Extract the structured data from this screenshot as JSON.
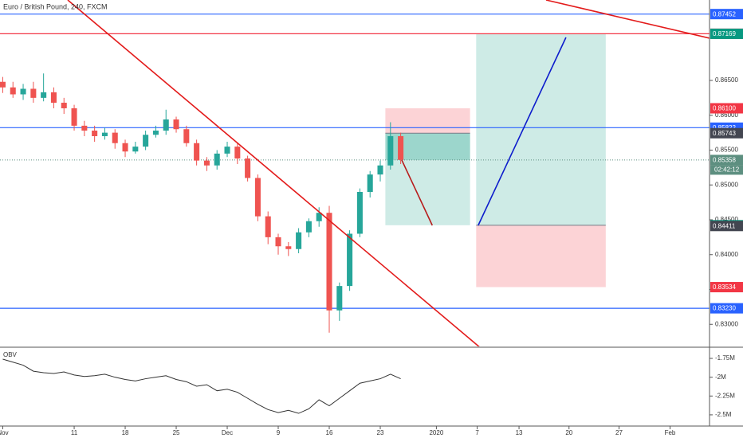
{
  "chart_data": [
    {
      "type": "candlestick",
      "title": "Euro / British Pound, 240, FXCM",
      "x": [
        -7,
        -6,
        -5,
        -4,
        -3,
        -2,
        -1,
        0,
        1,
        2,
        3,
        4,
        5,
        6,
        7,
        8,
        9,
        10,
        11,
        12,
        13,
        14,
        15,
        16,
        17,
        18,
        19,
        20,
        21,
        22,
        23,
        24,
        25,
        26,
        27,
        28,
        29,
        30,
        31,
        32
      ],
      "open": [
        0.8648,
        0.864,
        0.863,
        0.8638,
        0.8625,
        0.8633,
        0.8618,
        0.861,
        0.8585,
        0.8578,
        0.857,
        0.8575,
        0.856,
        0.8548,
        0.8555,
        0.8572,
        0.8578,
        0.8594,
        0.858,
        0.856,
        0.8535,
        0.8528,
        0.8545,
        0.8555,
        0.8538,
        0.851,
        0.8455,
        0.8425,
        0.8412,
        0.8408,
        0.8432,
        0.8448,
        0.846,
        0.832,
        0.8355,
        0.843,
        0.849,
        0.8515,
        0.8528,
        0.857
      ],
      "high": [
        0.8655,
        0.8648,
        0.8645,
        0.8648,
        0.866,
        0.864,
        0.8625,
        0.8615,
        0.8592,
        0.8585,
        0.8582,
        0.858,
        0.8565,
        0.8562,
        0.8578,
        0.8585,
        0.8608,
        0.8598,
        0.8585,
        0.8565,
        0.854,
        0.855,
        0.8562,
        0.856,
        0.8542,
        0.8515,
        0.8462,
        0.843,
        0.8418,
        0.8438,
        0.8452,
        0.8468,
        0.847,
        0.836,
        0.8435,
        0.8495,
        0.852,
        0.8535,
        0.859,
        0.8575
      ],
      "low": [
        0.8632,
        0.8625,
        0.8622,
        0.8618,
        0.862,
        0.861,
        0.8602,
        0.8578,
        0.857,
        0.8562,
        0.8565,
        0.8552,
        0.854,
        0.8545,
        0.855,
        0.8568,
        0.8572,
        0.8575,
        0.8555,
        0.8528,
        0.852,
        0.8522,
        0.854,
        0.853,
        0.8505,
        0.8448,
        0.8415,
        0.84,
        0.8398,
        0.8402,
        0.8425,
        0.844,
        0.8288,
        0.8305,
        0.8348,
        0.8425,
        0.8482,
        0.8505,
        0.8522,
        0.853
      ],
      "close": [
        0.864,
        0.863,
        0.8638,
        0.8625,
        0.8633,
        0.8618,
        0.861,
        0.8585,
        0.8578,
        0.857,
        0.8575,
        0.856,
        0.8548,
        0.8555,
        0.8572,
        0.8578,
        0.8594,
        0.858,
        0.856,
        0.8535,
        0.8528,
        0.8545,
        0.8555,
        0.8538,
        0.851,
        0.8455,
        0.8425,
        0.8412,
        0.8408,
        0.8432,
        0.8448,
        0.846,
        0.832,
        0.8355,
        0.843,
        0.849,
        0.8515,
        0.8528,
        0.857,
        0.8536
      ],
      "up_color": "#26a69a",
      "down_color": "#ef5350",
      "xlim": [
        -7.27,
        62.27
      ],
      "xticks": [
        {
          "value": -7,
          "label": "Nov"
        },
        {
          "value": 0,
          "label": "11"
        },
        {
          "value": 5,
          "label": "18"
        },
        {
          "value": 10,
          "label": "25"
        },
        {
          "value": 15,
          "label": "Dec"
        },
        {
          "value": 20,
          "label": "9"
        },
        {
          "value": 25,
          "label": "16"
        },
        {
          "value": 30,
          "label": "23"
        },
        {
          "value": 35.5,
          "label": "2020"
        },
        {
          "value": 39.5,
          "label": "7"
        },
        {
          "value": 43.6,
          "label": "13"
        },
        {
          "value": 48.5,
          "label": "20"
        },
        {
          "value": 53.4,
          "label": "27"
        },
        {
          "value": 58.4,
          "label": "Feb"
        }
      ],
      "ylim": [
        0.82683,
        0.87654
      ],
      "yticks": [
        {
          "value": 0.865,
          "label": "0.86500"
        },
        {
          "value": 0.86,
          "label": "0.86000"
        },
        {
          "value": 0.855,
          "label": "0.85500"
        },
        {
          "value": 0.85,
          "label": "0.85000"
        },
        {
          "value": 0.845,
          "label": "0.84500"
        },
        {
          "value": 0.84,
          "label": "0.84000"
        },
        {
          "value": 0.835,
          "label": "0.83500"
        },
        {
          "value": 0.83,
          "label": "0.83000"
        }
      ],
      "price_labels": [
        {
          "value": 0.87452,
          "label": "0.87452",
          "color": "#2962ff",
          "line": "solid"
        },
        {
          "value": 0.8717,
          "label": "0.87170",
          "color": "#f23645",
          "line": "solid"
        },
        {
          "value": 0.87169,
          "label": "0.87169",
          "color": "#089981"
        },
        {
          "value": 0.861,
          "label": "0.86100",
          "color": "#f23645"
        },
        {
          "value": 0.85822,
          "label": "0.85822",
          "color": "#2962ff",
          "line": "solid"
        },
        {
          "value": 0.85743,
          "label": "0.85743",
          "color": "#434651"
        },
        {
          "value": 0.85358,
          "label": "0.85358",
          "color": "#5d8f80",
          "line": "dotted"
        },
        {
          "value": 0.84422,
          "label": "0.84422",
          "color": "#089981"
        },
        {
          "value": 0.84411,
          "label": "0.84411",
          "color": "#434651"
        },
        {
          "value": 0.83534,
          "label": "0.83534",
          "color": "#f23645"
        },
        {
          "value": 0.8323,
          "label": "0.83230",
          "color": "#2962ff",
          "line": "solid"
        }
      ],
      "countdown": "02:42:12",
      "positions": [
        {
          "x0": 30.5,
          "x1": 38.8,
          "entry": 5,
          "stop": 3,
          "target": 7,
          "current": 6
        },
        {
          "x0": 39.4,
          "x1": 52.1,
          "entry": 7,
          "stop": 9,
          "target": 2
        }
      ],
      "trend_lines": [
        {
          "color": "#e31b1b",
          "points": [
            [
              -0.63,
              0.87654
            ],
            [
              39.84,
              0.8266
            ]
          ]
        },
        {
          "color": "#e31b1b",
          "points": [
            [
              46.25,
              0.87654
            ],
            [
              62.27,
              0.87106
            ]
          ]
        },
        {
          "color": "#b71c1c",
          "points": [
            [
              32.1,
              0.8536
            ],
            [
              35.1,
              0.8442
            ]
          ]
        },
        {
          "color": "#0d1ccc",
          "points": [
            [
              39.6,
              0.8442
            ],
            [
              48.2,
              0.87117
            ]
          ]
        }
      ]
    },
    {
      "type": "line",
      "title": "OBV",
      "color": "#333333",
      "x": [
        -7,
        -6,
        -5,
        -4,
        -3,
        -2,
        -1,
        0,
        1,
        2,
        3,
        4,
        5,
        6,
        7,
        8,
        9,
        10,
        11,
        12,
        13,
        14,
        15,
        16,
        17,
        18,
        19,
        20,
        21,
        22,
        23,
        24,
        25,
        26,
        27,
        28,
        29,
        30,
        31,
        32
      ],
      "values": [
        -1760000,
        -1800000,
        -1840000,
        -1920000,
        -1940000,
        -1950000,
        -1930000,
        -1970000,
        -1990000,
        -1980000,
        -1960000,
        -2000000,
        -2030000,
        -2050000,
        -2020000,
        -2000000,
        -1980000,
        -2030000,
        -2060000,
        -2120000,
        -2100000,
        -2180000,
        -2160000,
        -2200000,
        -2280000,
        -2360000,
        -2430000,
        -2470000,
        -2440000,
        -2480000,
        -2420000,
        -2300000,
        -2380000,
        -2280000,
        -2180000,
        -2080000,
        -2050000,
        -2020000,
        -1960000,
        -2020000
      ],
      "ylim": [
        -2649000,
        -1612000
      ],
      "yticks": [
        {
          "value": -1750000,
          "label": "-1.75M"
        },
        {
          "value": -2000000,
          "label": "-2M"
        },
        {
          "value": -2250000,
          "label": "-2.25M"
        },
        {
          "value": -2500000,
          "label": "-2.5M"
        }
      ]
    }
  ]
}
